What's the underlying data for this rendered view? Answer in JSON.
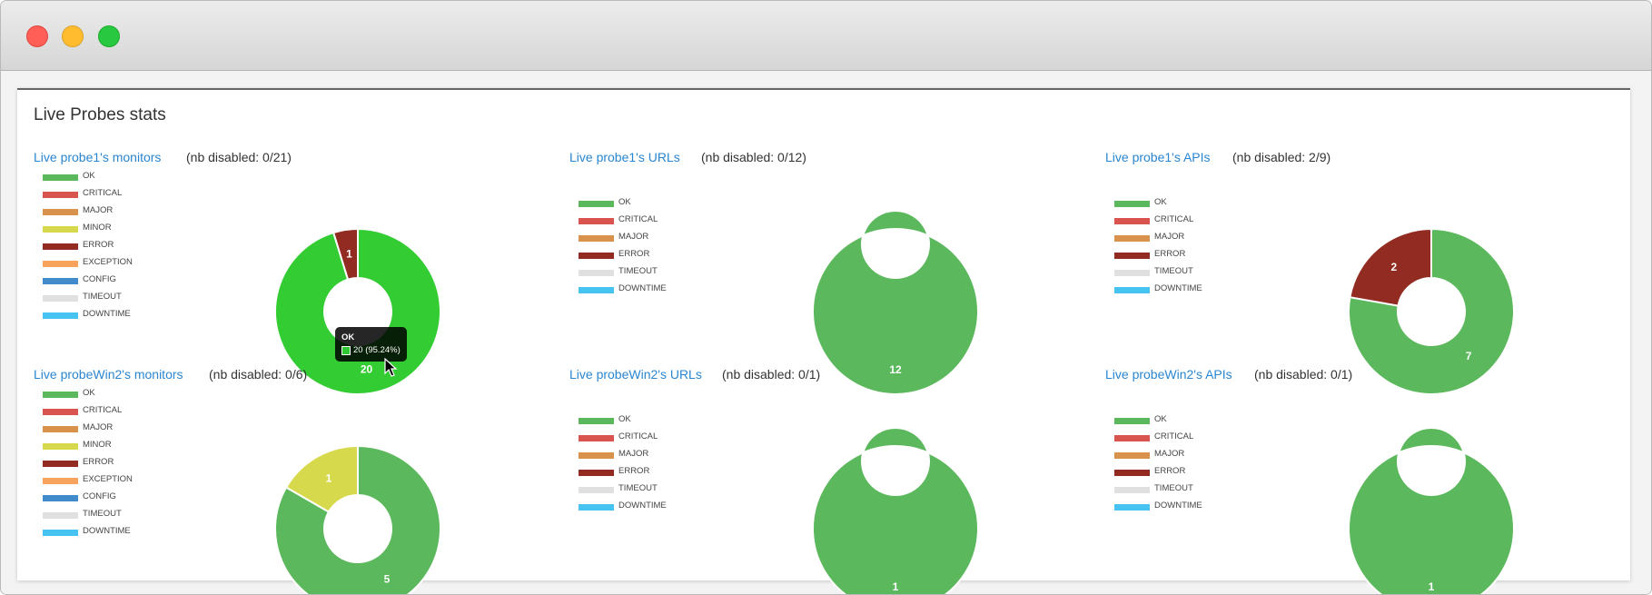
{
  "panel": {
    "title": "Live Probes stats"
  },
  "colors": {
    "OK": "#5cb85c",
    "CRITICAL": "#d9534f",
    "MAJOR": "#d9924c",
    "MINOR": "#d7d94d",
    "ERROR": "#922b21",
    "EXCEPTION": "#f7a35c",
    "CONFIG": "#428bca",
    "TIMEOUT": "#e0e0e0",
    "DOWNTIME": "#46c3f0",
    "OK_active": "#33cc33"
  },
  "blocks": [
    {
      "title": "Live probe1's monitors",
      "disabled": "(nb disabled: 0/21)",
      "legend": [
        "OK",
        "CRITICAL",
        "MAJOR",
        "MINOR",
        "ERROR",
        "EXCEPTION",
        "CONFIG",
        "TIMEOUT",
        "DOWNTIME"
      ],
      "slices": [
        {
          "label": "OK",
          "value": 20
        },
        {
          "label": "ERROR",
          "value": 1
        }
      ],
      "hover": "OK"
    },
    {
      "title": "Live probe1's URLs",
      "disabled": "(nb disabled: 0/12)",
      "legend": [
        "OK",
        "CRITICAL",
        "MAJOR",
        "ERROR",
        "TIMEOUT",
        "DOWNTIME"
      ],
      "slices": [
        {
          "label": "OK",
          "value": 12
        }
      ]
    },
    {
      "title": "Live probe1's APIs",
      "disabled": "(nb disabled: 2/9)",
      "legend": [
        "OK",
        "CRITICAL",
        "MAJOR",
        "ERROR",
        "TIMEOUT",
        "DOWNTIME"
      ],
      "slices": [
        {
          "label": "OK",
          "value": 7
        },
        {
          "label": "ERROR",
          "value": 2
        }
      ]
    },
    {
      "title": "Live probeWin2's monitors",
      "disabled": "(nb disabled: 0/6)",
      "legend": [
        "OK",
        "CRITICAL",
        "MAJOR",
        "MINOR",
        "ERROR",
        "EXCEPTION",
        "CONFIG",
        "TIMEOUT",
        "DOWNTIME"
      ],
      "slices": [
        {
          "label": "OK",
          "value": 5
        },
        {
          "label": "MINOR",
          "value": 1
        }
      ]
    },
    {
      "title": "Live probeWin2's URLs",
      "disabled": "(nb disabled: 0/1)",
      "legend": [
        "OK",
        "CRITICAL",
        "MAJOR",
        "ERROR",
        "TIMEOUT",
        "DOWNTIME"
      ],
      "slices": [
        {
          "label": "OK",
          "value": 1
        }
      ]
    },
    {
      "title": "Live probeWin2's APIs",
      "disabled": "(nb disabled: 0/1)",
      "legend": [
        "OK",
        "CRITICAL",
        "MAJOR",
        "ERROR",
        "TIMEOUT",
        "DOWNTIME"
      ],
      "slices": [
        {
          "label": "OK",
          "value": 1
        }
      ]
    }
  ],
  "tooltip": {
    "title": "OK",
    "value": "20 (95.24%)"
  },
  "chart_data": [
    {
      "type": "pie",
      "categories": [
        "OK",
        "ERROR"
      ],
      "values": [
        20,
        1
      ]
    },
    {
      "type": "pie",
      "categories": [
        "OK"
      ],
      "values": [
        12
      ]
    },
    {
      "type": "pie",
      "categories": [
        "OK",
        "ERROR"
      ],
      "values": [
        7,
        2
      ]
    },
    {
      "type": "pie",
      "categories": [
        "OK",
        "MINOR"
      ],
      "values": [
        5,
        1
      ]
    },
    {
      "type": "pie",
      "categories": [
        "OK"
      ],
      "values": [
        1
      ]
    },
    {
      "type": "pie",
      "categories": [
        "OK"
      ],
      "values": [
        1
      ]
    }
  ]
}
